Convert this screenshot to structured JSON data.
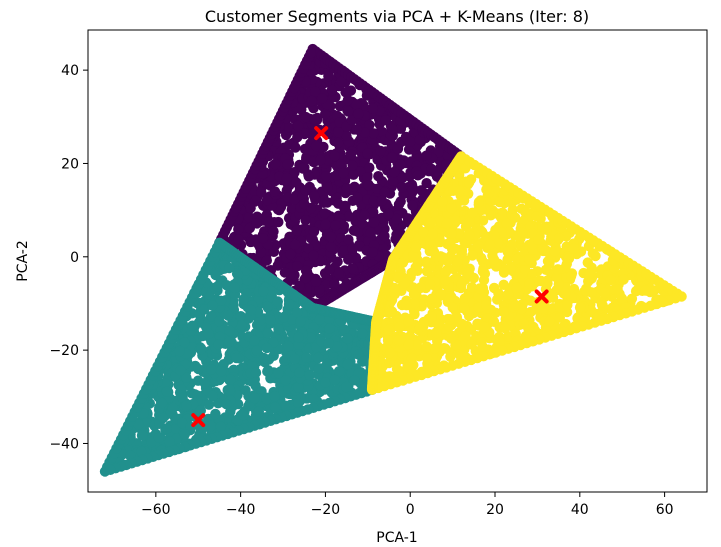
{
  "chart_data": {
    "type": "scatter",
    "title": "Customer Segments via PCA + K-Means (Iter: 8)",
    "xlabel": "PCA-1",
    "ylabel": "PCA-2",
    "xlim": [
      -76,
      70
    ],
    "ylim": [
      -50.4,
      48.6
    ],
    "xticks": [
      -60,
      -40,
      -20,
      0,
      20,
      40,
      60
    ],
    "yticks": [
      -40,
      -20,
      0,
      20,
      40
    ],
    "grid": false,
    "legend": "none",
    "clusters": [
      {
        "color": "#440154",
        "region": [
          [
            -23,
            44.5
          ],
          [
            12,
            21.5
          ],
          [
            -4,
            -0.5
          ],
          [
            -23,
            -11
          ],
          [
            -45,
            3
          ]
        ],
        "centroid": [
          -21,
          26.5
        ]
      },
      {
        "color": "#21908d",
        "region": [
          [
            -72,
            -46
          ],
          [
            -45,
            3
          ],
          [
            -23,
            -11
          ],
          [
            -8,
            -14
          ],
          [
            -9,
            -28.5
          ]
        ],
        "centroid": [
          -50,
          -35
        ]
      },
      {
        "color": "#fde725",
        "region": [
          [
            12,
            21.5
          ],
          [
            64,
            -8.5
          ],
          [
            -9,
            -28.5
          ],
          [
            -8,
            -14
          ],
          [
            -4,
            -0.5
          ]
        ],
        "centroid": [
          31,
          -8.5
        ]
      }
    ],
    "centroid_color": "#ff0000",
    "centroid_marker": "X"
  }
}
